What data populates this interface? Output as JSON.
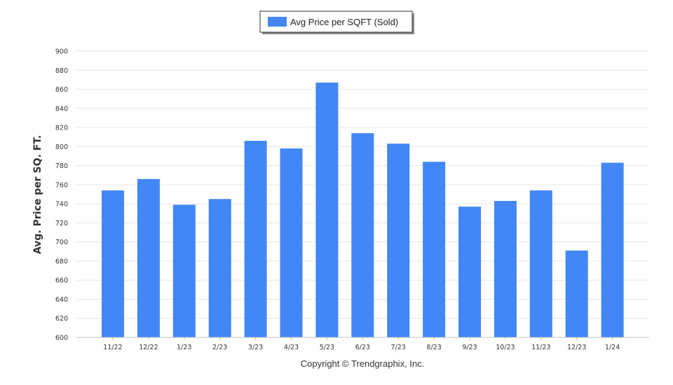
{
  "chart_data": {
    "type": "bar",
    "title": "",
    "xlabel": "",
    "ylabel": "Avg. Price per SQ. FT.",
    "ylim": [
      600,
      900
    ],
    "yticks": [
      600,
      620,
      640,
      660,
      680,
      700,
      720,
      740,
      760,
      780,
      800,
      820,
      840,
      860,
      880,
      900
    ],
    "grid": true,
    "legend_position": "top-center",
    "categories": [
      "11/22",
      "12/22",
      "1/23",
      "2/23",
      "3/23",
      "4/23",
      "5/23",
      "6/23",
      "7/23",
      "8/23",
      "9/23",
      "10/23",
      "11/23",
      "12/23",
      "1/24"
    ],
    "series": [
      {
        "name": "Avg Price per SQFT (Sold)",
        "color": "#4287f5",
        "values": [
          754,
          766,
          739,
          745,
          806,
          798,
          867,
          814,
          803,
          784,
          737,
          743,
          754,
          691,
          783
        ]
      }
    ]
  },
  "footer": {
    "copyright": "Copyright © Trendgraphix, Inc."
  }
}
